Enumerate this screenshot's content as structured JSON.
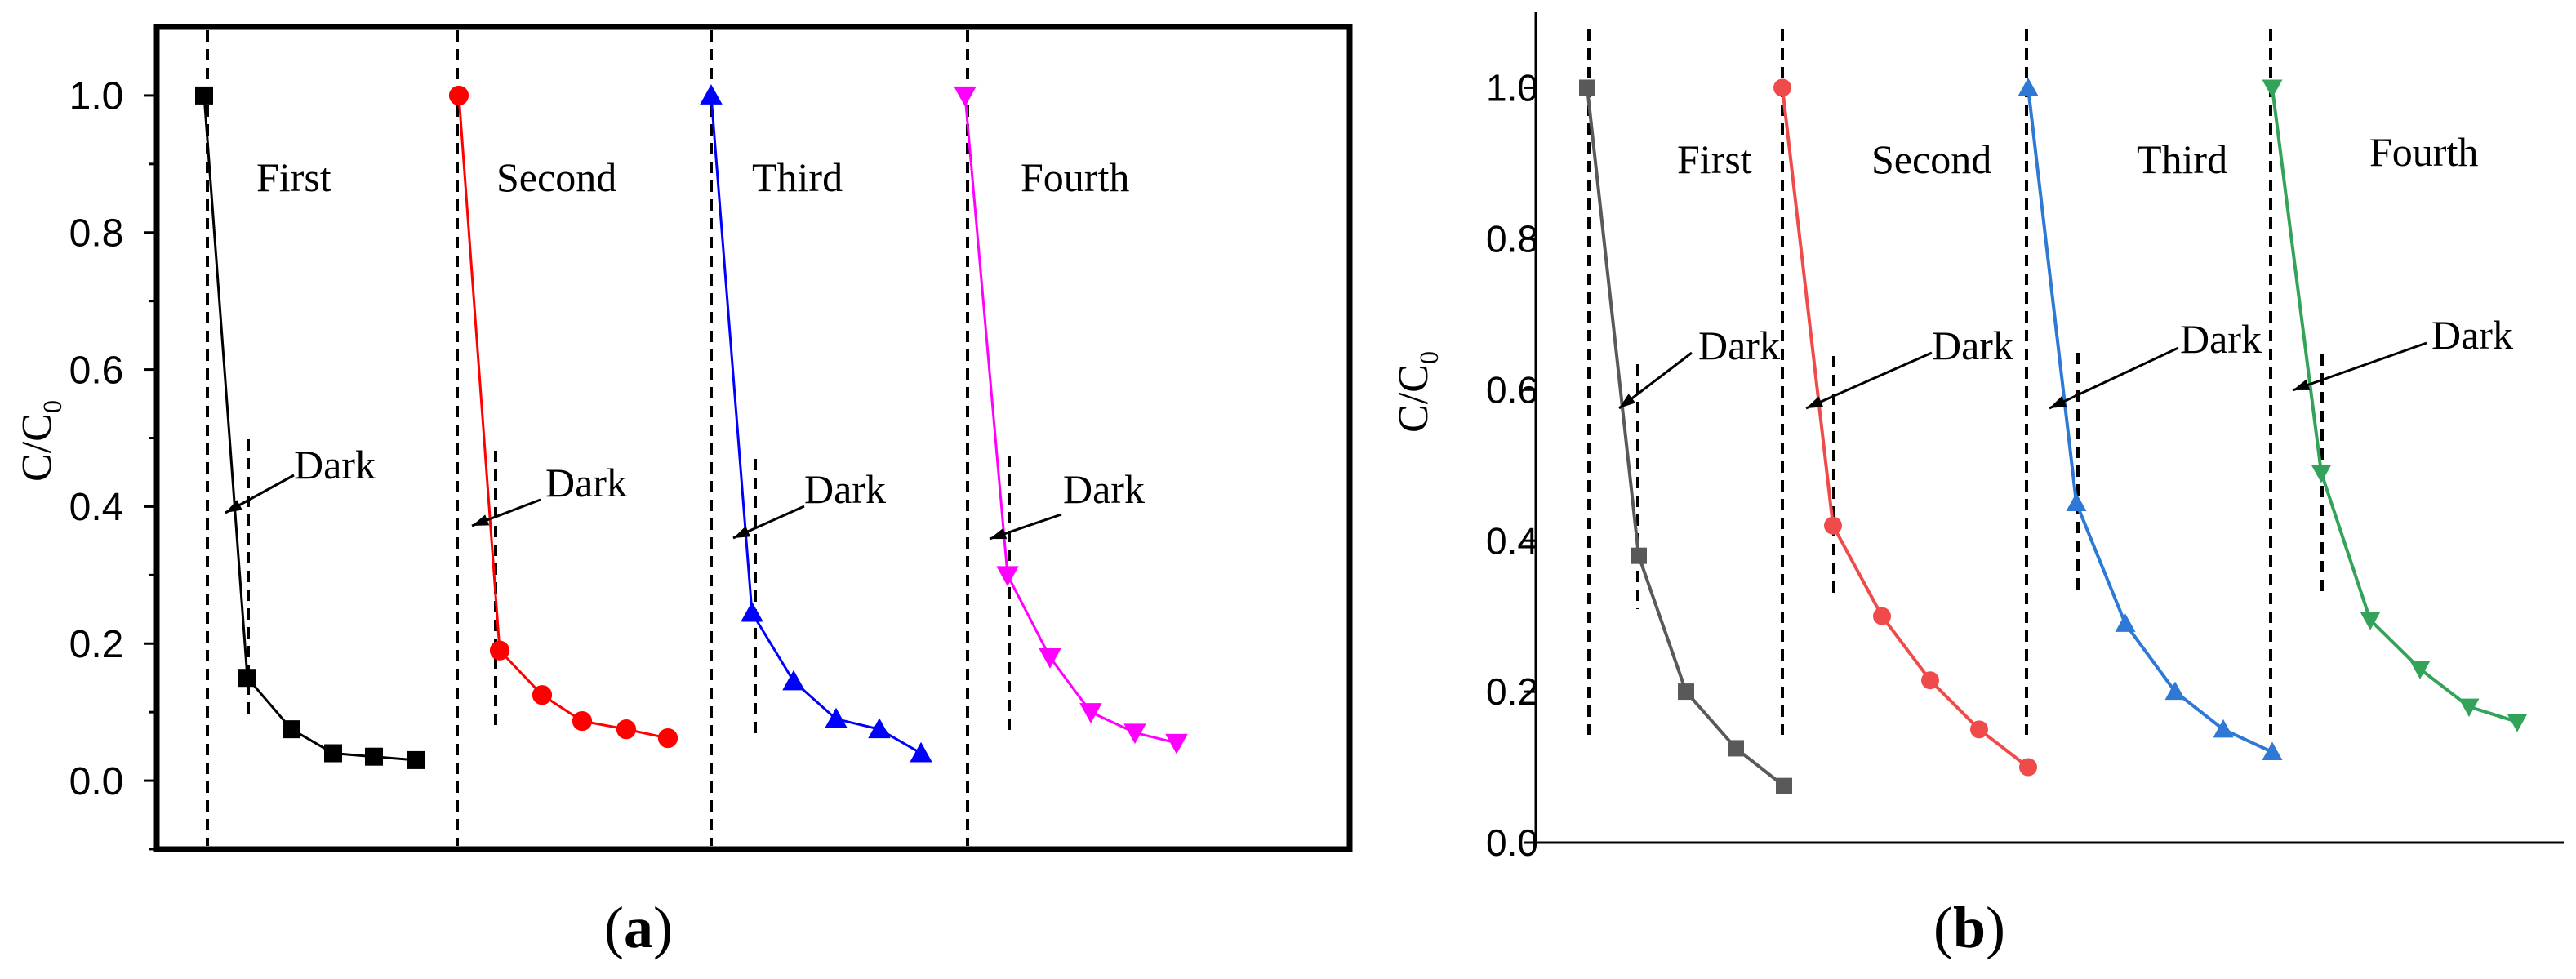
{
  "chart_data": [
    {
      "panel_label": "(a)",
      "type": "line",
      "ylabel": "C/C0",
      "ylabel_main": "C/C",
      "ylabel_sub": "0",
      "ylim": [
        -0.1,
        1.1
      ],
      "yticks": [
        "0.0",
        "0.2",
        "0.4",
        "0.6",
        "0.8",
        "1.0"
      ],
      "ytick_values": [
        0.0,
        0.2,
        0.4,
        0.6,
        0.8,
        1.0
      ],
      "grid": false,
      "annotation_text": "Dark",
      "series": [
        {
          "name": "First",
          "color": "#000000",
          "marker": "square",
          "values": [
            1.0,
            0.15,
            0.075,
            0.04,
            0.035,
            0.03
          ]
        },
        {
          "name": "Second",
          "color": "#ff0000",
          "marker": "circle",
          "values": [
            1.0,
            0.19,
            0.125,
            0.087,
            0.075,
            0.062
          ]
        },
        {
          "name": "Third",
          "color": "#0000ff",
          "marker": "triangle-up",
          "values": [
            1.0,
            0.245,
            0.145,
            0.09,
            0.075,
            0.04
          ]
        },
        {
          "name": "Fourth",
          "color": "#ff00ff",
          "marker": "triangle-down",
          "values": [
            1.0,
            0.3,
            0.18,
            0.1,
            0.07,
            0.055
          ]
        }
      ]
    },
    {
      "panel_label": "(b)",
      "type": "line",
      "ylabel": "C/C0",
      "ylabel_main": "C/C",
      "ylabel_sub": "0",
      "ylim": [
        0.0,
        1.1
      ],
      "yticks": [
        "0.0",
        "0.2",
        "0.4",
        "0.6",
        "0.8",
        "1.0"
      ],
      "ytick_values": [
        0.0,
        0.2,
        0.4,
        0.6,
        0.8,
        1.0
      ],
      "grid": false,
      "annotation_text": "Dark",
      "series": [
        {
          "name": "First",
          "color": "#595959",
          "marker": "square",
          "values": [
            1.0,
            0.38,
            0.2,
            0.125,
            0.075
          ]
        },
        {
          "name": "Second",
          "color": "#f04b4b",
          "marker": "circle",
          "values": [
            1.0,
            0.42,
            0.3,
            0.215,
            0.15,
            0.1
          ]
        },
        {
          "name": "Third",
          "color": "#2e78d6",
          "marker": "triangle-up",
          "values": [
            1.0,
            0.45,
            0.29,
            0.2,
            0.15,
            0.12
          ]
        },
        {
          "name": "Fourth",
          "color": "#33a35a",
          "marker": "triangle-down",
          "values": [
            1.0,
            0.49,
            0.295,
            0.23,
            0.18,
            0.16
          ]
        }
      ]
    }
  ]
}
